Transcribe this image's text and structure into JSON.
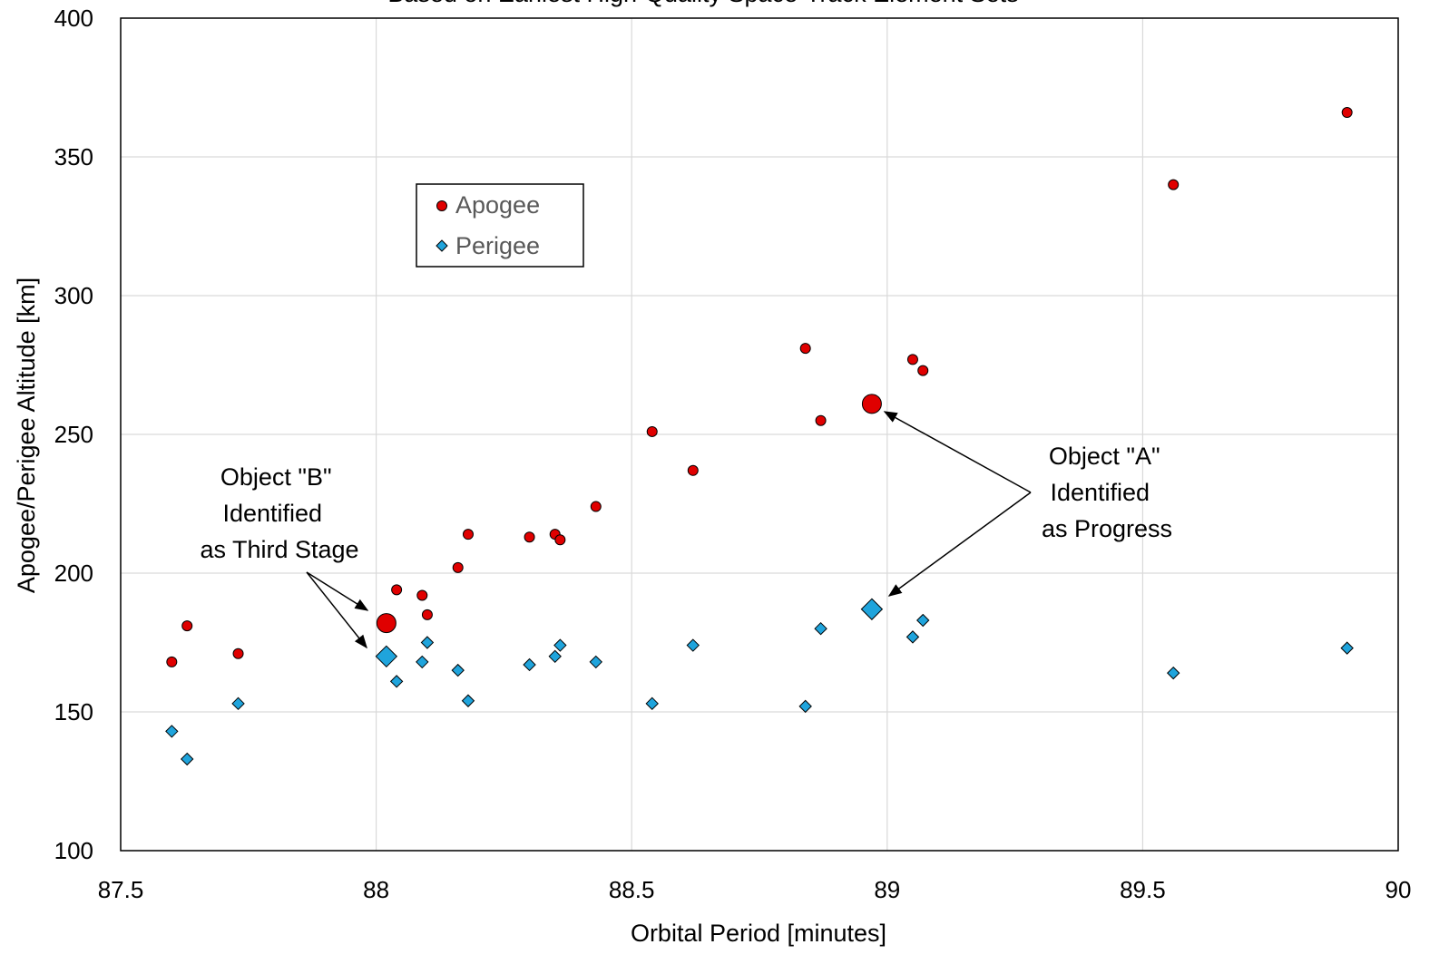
{
  "chart_data": {
    "type": "scatter",
    "title": "Based on Earliest High-Quality Space-Track Element Sets",
    "xlabel": "Orbital Period [minutes]",
    "ylabel": "Apogee/Perigee Altitude [km]",
    "xlim": [
      87.5,
      90
    ],
    "ylim": [
      100,
      400
    ],
    "xticks": [
      "87.5",
      "88",
      "88.5",
      "89",
      "89.5",
      "90"
    ],
    "yticks": [
      "100",
      "150",
      "200",
      "250",
      "300",
      "350",
      "400"
    ],
    "grid": true,
    "legend_position": "upper-left-center",
    "series": [
      {
        "name": "Apogee",
        "marker": "circle",
        "color": "#e00000",
        "x": [
          87.6,
          87.63,
          87.73,
          88.04,
          88.09,
          88.1,
          88.16,
          88.18,
          88.3,
          88.35,
          88.36,
          88.43,
          88.54,
          88.62,
          88.84,
          88.87,
          89.05,
          89.07,
          89.56,
          89.9
        ],
        "y": [
          168,
          181,
          171,
          194,
          192,
          185,
          202,
          214,
          213,
          214,
          212,
          224,
          251,
          237,
          281,
          255,
          277,
          273,
          340,
          366
        ]
      },
      {
        "name": "Perigee",
        "marker": "diamond",
        "color": "#1fa4dc",
        "x": [
          87.6,
          87.63,
          87.73,
          88.04,
          88.09,
          88.1,
          88.16,
          88.18,
          88.3,
          88.35,
          88.36,
          88.43,
          88.54,
          88.62,
          88.84,
          88.87,
          89.05,
          89.07,
          89.56,
          89.9
        ],
        "y": [
          143,
          133,
          153,
          161,
          168,
          175,
          165,
          154,
          167,
          170,
          174,
          168,
          153,
          174,
          152,
          180,
          177,
          183,
          164,
          173
        ]
      }
    ],
    "highlighted_points": [
      {
        "series": "Apogee",
        "x": 88.02,
        "y": 182
      },
      {
        "series": "Perigee",
        "x": 88.02,
        "y": 170
      },
      {
        "series": "Apogee",
        "x": 88.97,
        "y": 261
      },
      {
        "series": "Perigee",
        "x": 88.97,
        "y": 187
      }
    ],
    "annotations": [
      {
        "lines": [
          "Object \"B\"",
          "Identified",
          "as Third Stage"
        ]
      },
      {
        "lines": [
          "Object \"A\"",
          "Identified",
          "as Progress"
        ]
      }
    ]
  }
}
